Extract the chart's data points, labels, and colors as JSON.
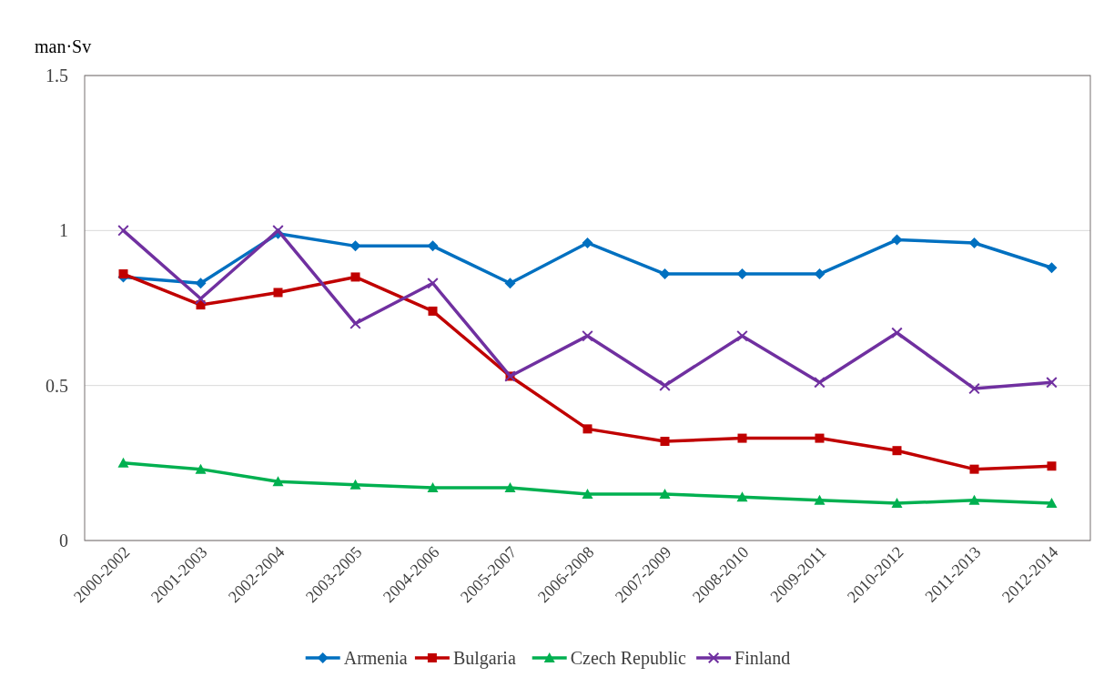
{
  "chart_data": {
    "type": "line",
    "ylabel": "man·Sv",
    "categories": [
      "2000-2002",
      "2001-2003",
      "2002-2004",
      "2003-2005",
      "2004-2006",
      "2005-2007",
      "2006-2008",
      "2007-2009",
      "2008-2010",
      "2009-2011",
      "2010-2012",
      "2011-2013",
      "2012-2014"
    ],
    "series": [
      {
        "name": "Armenia",
        "color": "#0070c0",
        "marker": "diamond",
        "values": [
          0.85,
          0.83,
          0.99,
          0.95,
          0.95,
          0.83,
          0.96,
          0.86,
          0.86,
          0.86,
          0.97,
          0.96,
          0.88
        ]
      },
      {
        "name": "Bulgaria",
        "color": "#c00000",
        "marker": "square",
        "values": [
          0.86,
          0.76,
          0.8,
          0.85,
          0.74,
          0.53,
          0.36,
          0.32,
          0.33,
          0.33,
          0.29,
          0.23,
          0.24
        ]
      },
      {
        "name": "Czech Republic",
        "color": "#00b050",
        "marker": "triangle",
        "values": [
          0.25,
          0.23,
          0.19,
          0.18,
          0.17,
          0.17,
          0.15,
          0.15,
          0.14,
          0.13,
          0.12,
          0.13,
          0.12
        ]
      },
      {
        "name": "Finland",
        "color": "#7030a0",
        "marker": "cross",
        "values": [
          1.0,
          0.78,
          1.0,
          0.7,
          0.83,
          0.53,
          0.66,
          0.5,
          0.66,
          0.51,
          0.67,
          0.49,
          0.51
        ]
      }
    ],
    "ylim": [
      0,
      1.5
    ],
    "yticks": [
      0,
      0.5,
      1,
      1.5
    ],
    "grid": "y",
    "legend": "bottom"
  }
}
